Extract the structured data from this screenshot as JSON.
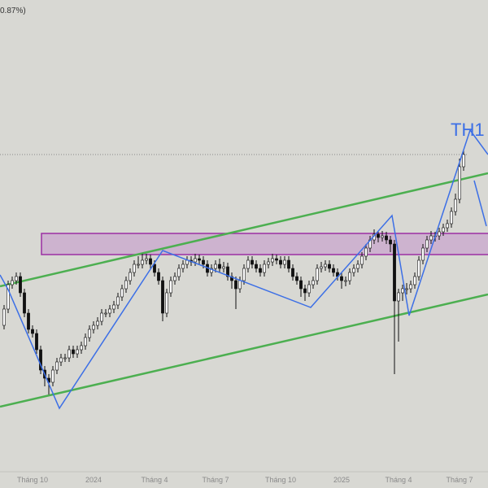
{
  "chart_data": {
    "type": "candlestick",
    "legend_text": "0.87%)",
    "annotation": "TH1",
    "ylim": [
      0,
      580
    ],
    "categories": [
      null,
      null,
      null,
      null,
      null,
      null,
      null,
      "Tháng 10",
      null,
      null,
      null,
      null,
      null,
      null,
      null,
      null,
      null,
      null,
      null,
      null,
      null,
      null,
      "2024",
      null,
      null,
      null,
      null,
      null,
      null,
      null,
      null,
      null,
      null,
      null,
      null,
      null,
      null,
      "Tháng 4",
      null,
      null,
      null,
      null,
      null,
      null,
      null,
      null,
      null,
      null,
      null,
      null,
      null,
      null,
      "Tháng 7",
      null,
      null,
      null,
      null,
      null,
      null,
      null,
      null,
      null,
      null,
      null,
      null,
      null,
      null,
      null,
      "Tháng 10",
      null,
      null,
      null,
      null,
      null,
      null,
      null,
      null,
      null,
      null,
      null,
      null,
      null,
      null,
      "2025",
      null,
      null,
      null,
      null,
      null,
      null,
      null,
      null,
      null,
      null,
      null,
      null,
      null,
      "Tháng 4",
      null,
      null,
      null,
      null,
      null,
      null,
      null,
      null,
      null,
      null,
      null,
      null,
      null,
      null,
      "Tháng 7",
      null
    ],
    "open": [
      180,
      200,
      230,
      235,
      240,
      220,
      195,
      175,
      170,
      150,
      125,
      115,
      110,
      125,
      135,
      140,
      140,
      150,
      145,
      150,
      155,
      165,
      175,
      180,
      185,
      195,
      195,
      200,
      205,
      215,
      225,
      235,
      245,
      255,
      255,
      260,
      262,
      255,
      245,
      235,
      195,
      220,
      235,
      240,
      250,
      255,
      260,
      258,
      262,
      260,
      255,
      245,
      250,
      255,
      250,
      252,
      240,
      235,
      225,
      235,
      250,
      260,
      255,
      250,
      245,
      255,
      258,
      262,
      260,
      255,
      260,
      250,
      240,
      235,
      225,
      220,
      230,
      235,
      250,
      252,
      255,
      250,
      245,
      240,
      235,
      235,
      245,
      250,
      255,
      265,
      275,
      285,
      292,
      288,
      290,
      285,
      280,
      210,
      220,
      225,
      225,
      230,
      240,
      260,
      275,
      285,
      290,
      290,
      295,
      300,
      305,
      320,
      335,
      375
    ],
    "high": [
      205,
      235,
      240,
      245,
      245,
      225,
      200,
      180,
      175,
      155,
      130,
      120,
      130,
      140,
      145,
      145,
      155,
      155,
      155,
      160,
      170,
      180,
      185,
      190,
      200,
      200,
      205,
      210,
      220,
      230,
      240,
      250,
      260,
      265,
      268,
      268,
      267,
      260,
      250,
      240,
      225,
      240,
      245,
      255,
      260,
      265,
      265,
      268,
      267,
      265,
      260,
      255,
      260,
      262,
      258,
      257,
      245,
      240,
      240,
      255,
      265,
      265,
      260,
      255,
      260,
      263,
      268,
      267,
      265,
      265,
      265,
      255,
      245,
      240,
      230,
      235,
      240,
      255,
      258,
      260,
      260,
      255,
      250,
      245,
      240,
      250,
      255,
      260,
      270,
      280,
      290,
      298,
      296,
      296,
      295,
      290,
      285,
      225,
      230,
      232,
      235,
      245,
      265,
      280,
      290,
      296,
      295,
      300,
      305,
      310,
      325,
      342,
      385,
      395
    ],
    "low": [
      175,
      195,
      225,
      230,
      215,
      190,
      170,
      165,
      145,
      120,
      105,
      95,
      105,
      120,
      130,
      135,
      135,
      140,
      140,
      145,
      150,
      160,
      170,
      175,
      180,
      190,
      190,
      195,
      200,
      210,
      220,
      230,
      240,
      250,
      250,
      255,
      250,
      240,
      230,
      185,
      190,
      215,
      230,
      235,
      245,
      250,
      253,
      253,
      255,
      250,
      240,
      240,
      245,
      245,
      245,
      235,
      225,
      200,
      220,
      230,
      245,
      250,
      245,
      240,
      240,
      250,
      253,
      255,
      250,
      250,
      245,
      235,
      230,
      215,
      210,
      215,
      225,
      230,
      245,
      247,
      245,
      240,
      235,
      225,
      228,
      230,
      240,
      245,
      250,
      260,
      270,
      280,
      282,
      283,
      280,
      270,
      120,
      160,
      210,
      218,
      220,
      225,
      235,
      255,
      270,
      280,
      283,
      285,
      290,
      295,
      300,
      315,
      330,
      370
    ],
    "close": [
      200,
      230,
      235,
      240,
      220,
      195,
      175,
      170,
      150,
      125,
      115,
      110,
      125,
      135,
      140,
      140,
      150,
      145,
      150,
      155,
      165,
      175,
      180,
      185,
      195,
      195,
      200,
      205,
      215,
      225,
      235,
      245,
      255,
      255,
      260,
      262,
      255,
      245,
      235,
      195,
      220,
      235,
      240,
      250,
      255,
      260,
      258,
      262,
      260,
      255,
      245,
      250,
      255,
      250,
      252,
      240,
      235,
      225,
      235,
      250,
      260,
      255,
      250,
      245,
      255,
      258,
      262,
      260,
      255,
      260,
      250,
      240,
      235,
      225,
      220,
      230,
      235,
      250,
      252,
      255,
      250,
      245,
      240,
      235,
      235,
      245,
      250,
      255,
      265,
      275,
      285,
      292,
      288,
      290,
      285,
      280,
      210,
      220,
      225,
      225,
      230,
      240,
      260,
      275,
      285,
      290,
      290,
      295,
      300,
      305,
      320,
      335,
      375,
      390
    ]
  }
}
